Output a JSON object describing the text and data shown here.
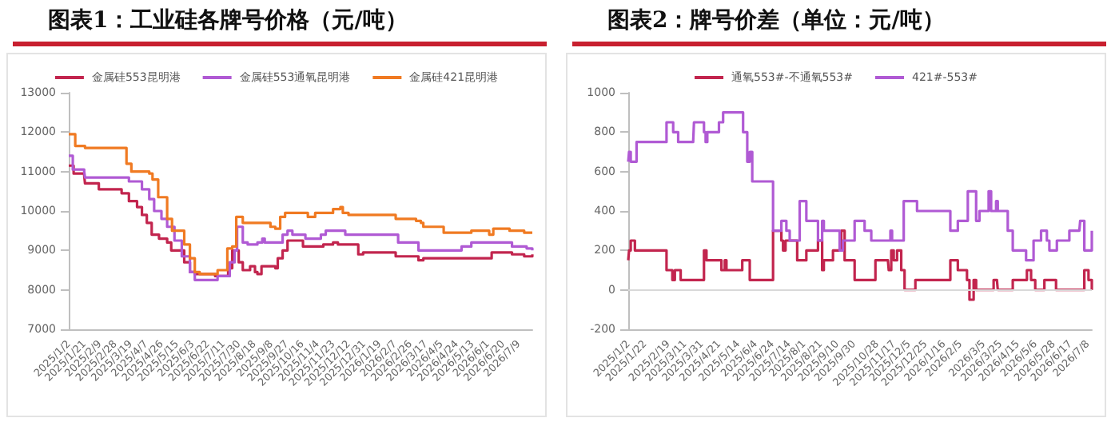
{
  "chart_data": [
    {
      "type": "step",
      "title": "图表1：工业硅各牌号价格（元/吨）",
      "legend": "top",
      "ylim": [
        7000,
        13000
      ],
      "yticks": [
        7000,
        8000,
        9000,
        10000,
        11000,
        12000,
        13000
      ],
      "xlim": [
        "2025-01-02",
        "2026-07-26"
      ],
      "xticks": [
        {
          "value": "2025-01-02",
          "label": "2025/1/2"
        },
        {
          "value": "2025-01-21",
          "label": "2025/1/21"
        },
        {
          "value": "2025-02-09",
          "label": "2025/2/9"
        },
        {
          "value": "2025-02-28",
          "label": "2025/2/28"
        },
        {
          "value": "2025-03-19",
          "label": "2025/3/19"
        },
        {
          "value": "2025-04-07",
          "label": "2025/4/7"
        },
        {
          "value": "2025-04-26",
          "label": "2025/4/26"
        },
        {
          "value": "2025-05-15",
          "label": "2025/5/15"
        },
        {
          "value": "2025-06-03",
          "label": "2025/6/3"
        },
        {
          "value": "2025-06-22",
          "label": "2025/6/22"
        },
        {
          "value": "2025-07-11",
          "label": "2025/7/11"
        },
        {
          "value": "2025-07-30",
          "label": "2025/7/30"
        },
        {
          "value": "2025-08-18",
          "label": "2025/8/18"
        },
        {
          "value": "2025-09-08",
          "label": "2025/9/8"
        },
        {
          "value": "2025-09-27",
          "label": "2025/9/27"
        },
        {
          "value": "2025-10-16",
          "label": "2025/10/16"
        },
        {
          "value": "2025-11-04",
          "label": "2025/11/4"
        },
        {
          "value": "2025-11-23",
          "label": "2025/11/23"
        },
        {
          "value": "2025-12-12",
          "label": "2025/12/12"
        },
        {
          "value": "2025-12-31",
          "label": "2025/12/31"
        },
        {
          "value": "2026-01-19",
          "label": "2026/1/19"
        },
        {
          "value": "2026-02-07",
          "label": "2026/2/7"
        },
        {
          "value": "2026-02-26",
          "label": "2026/2/26"
        },
        {
          "value": "2026-03-17",
          "label": "2026/3/17"
        },
        {
          "value": "2026-04-05",
          "label": "2026/4/5"
        },
        {
          "value": "2026-04-24",
          "label": "2026/4/24"
        },
        {
          "value": "2026-05-13",
          "label": "2026/5/13"
        },
        {
          "value": "2026-06-01",
          "label": "2026/6/1"
        },
        {
          "value": "2026-06-20",
          "label": "2026/6/20"
        },
        {
          "value": "2026-07-09",
          "label": "2026/7/9"
        }
      ],
      "series": [
        {
          "name": "金属硅553昆明港",
          "color": "#c2254e",
          "x": [
            "2025-01-02",
            "2025-01-08",
            "2025-01-21",
            "2025-01-22",
            "2025-02-05",
            "2025-02-08",
            "2025-03-05",
            "2025-03-08",
            "2025-03-17",
            "2025-03-27",
            "2025-04-02",
            "2025-04-08",
            "2025-04-14",
            "2025-04-23",
            "2025-05-03",
            "2025-05-08",
            "2025-05-20",
            "2025-05-24",
            "2025-05-31",
            "2025-06-06",
            "2025-07-01",
            "2025-07-13",
            "2025-07-17",
            "2025-07-22",
            "2025-07-27",
            "2025-07-30",
            "2025-08-04",
            "2025-08-13",
            "2025-08-19",
            "2025-08-22",
            "2025-08-27",
            "2025-09-13",
            "2025-09-16",
            "2025-09-22",
            "2025-09-28",
            "2025-10-11",
            "2025-10-17",
            "2025-11-11",
            "2025-11-23",
            "2025-11-29",
            "2025-12-18",
            "2025-12-24",
            "2025-12-30",
            "2026-02-05",
            "2026-02-08",
            "2026-03-05",
            "2026-03-08",
            "2026-03-14",
            "2026-06-03",
            "2026-06-06",
            "2026-06-28",
            "2026-07-01",
            "2026-07-16",
            "2026-07-26"
          ],
          "values": [
            11150,
            10950,
            10900,
            10700,
            10700,
            10550,
            10550,
            10450,
            10250,
            10100,
            9900,
            9700,
            9400,
            9300,
            9200,
            9000,
            9000,
            8700,
            8450,
            8400,
            8350,
            8350,
            8550,
            9000,
            9000,
            8700,
            8500,
            8600,
            8450,
            8400,
            8600,
            8550,
            8800,
            9000,
            9250,
            9250,
            9100,
            9150,
            9200,
            9150,
            9150,
            8900,
            8950,
            8950,
            8850,
            8850,
            8750,
            8800,
            8800,
            8950,
            8950,
            8900,
            8850,
            8900
          ]
        },
        {
          "name": "金属硅553通氧昆明港",
          "color": "#b05ad4",
          "x": [
            "2025-01-02",
            "2025-01-07",
            "2025-01-21",
            "2025-01-22",
            "2025-03-11",
            "2025-03-17",
            "2025-04-02",
            "2025-04-11",
            "2025-04-17",
            "2025-04-26",
            "2025-05-03",
            "2025-05-12",
            "2025-05-21",
            "2025-05-31",
            "2025-06-06",
            "2025-06-28",
            "2025-07-04",
            "2025-07-13",
            "2025-07-19",
            "2025-07-25",
            "2025-07-28",
            "2025-08-04",
            "2025-08-10",
            "2025-08-22",
            "2025-08-28",
            "2025-08-31",
            "2025-09-16",
            "2025-09-22",
            "2025-09-28",
            "2025-10-04",
            "2025-10-17",
            "2025-10-20",
            "2025-11-01",
            "2025-11-08",
            "2025-11-14",
            "2025-12-05",
            "2025-12-08",
            "2026-02-08",
            "2026-02-11",
            "2026-03-05",
            "2026-03-08",
            "2026-04-24",
            "2026-04-30",
            "2026-05-12",
            "2026-06-28",
            "2026-07-01",
            "2026-07-19",
            "2026-07-26"
          ],
          "values": [
            11400,
            11050,
            11000,
            10850,
            10850,
            10750,
            10550,
            10300,
            10000,
            9800,
            9600,
            9250,
            8850,
            8450,
            8250,
            8250,
            8350,
            8350,
            8700,
            9000,
            9600,
            9200,
            9150,
            9200,
            9300,
            9200,
            9200,
            9400,
            9500,
            9400,
            9400,
            9300,
            9300,
            9400,
            9500,
            9500,
            9400,
            9400,
            9200,
            9200,
            9000,
            9000,
            9100,
            9200,
            9200,
            9100,
            9050,
            9000
          ]
        },
        {
          "name": "金属硅421昆明港",
          "color": "#f07a22",
          "x": [
            "2025-01-02",
            "2025-01-07",
            "2025-01-10",
            "2025-01-22",
            "2025-03-11",
            "2025-03-14",
            "2025-03-20",
            "2025-04-11",
            "2025-04-15",
            "2025-04-22",
            "2025-04-30",
            "2025-05-03",
            "2025-05-09",
            "2025-05-20",
            "2025-05-24",
            "2025-05-31",
            "2025-06-06",
            "2025-06-12",
            "2025-07-01",
            "2025-07-04",
            "2025-07-11",
            "2025-07-16",
            "2025-07-22",
            "2025-07-27",
            "2025-07-31",
            "2025-08-04",
            "2025-08-22",
            "2025-09-07",
            "2025-09-13",
            "2025-09-19",
            "2025-09-25",
            "2025-10-20",
            "2025-10-23",
            "2025-11-01",
            "2025-11-20",
            "2025-11-23",
            "2025-12-02",
            "2025-12-05",
            "2025-12-12",
            "2026-02-05",
            "2026-02-08",
            "2026-03-05",
            "2026-03-11",
            "2026-03-14",
            "2026-04-05",
            "2026-04-08",
            "2026-05-09",
            "2026-05-12",
            "2026-05-31",
            "2026-06-03",
            "2026-06-08",
            "2026-06-25",
            "2026-06-28",
            "2026-07-16",
            "2026-07-26"
          ],
          "values": [
            11950,
            11950,
            11650,
            11600,
            11600,
            11200,
            11000,
            10950,
            10800,
            10350,
            10350,
            9800,
            9500,
            9500,
            9150,
            8800,
            8450,
            8400,
            8400,
            8500,
            8500,
            9050,
            9100,
            9850,
            9850,
            9700,
            9700,
            9600,
            9550,
            9850,
            9950,
            9950,
            9850,
            9950,
            9950,
            10050,
            10100,
            9950,
            9900,
            9900,
            9800,
            9750,
            9700,
            9600,
            9600,
            9450,
            9450,
            9500,
            9500,
            9400,
            9550,
            9550,
            9500,
            9450,
            9450
          ]
        }
      ]
    },
    {
      "type": "step",
      "title": "图表2：牌号价差（单位：元/吨）",
      "legend": "top",
      "ylim": [
        -200,
        1000
      ],
      "yticks": [
        -200,
        0,
        200,
        400,
        600,
        800,
        1000
      ],
      "xlim": [
        "2025-01-02",
        "2026-07-13"
      ],
      "ref_lines": [
        {
          "axis": "y",
          "value": 0,
          "color": "#d9d9d9"
        }
      ],
      "xticks": [
        {
          "value": "2025-01-02",
          "label": "2025/1/2"
        },
        {
          "value": "2025-01-22",
          "label": "2025/1/22"
        },
        {
          "value": "2025-02-19",
          "label": "2025/2/19"
        },
        {
          "value": "2025-03-11",
          "label": "2025/3/11"
        },
        {
          "value": "2025-03-31",
          "label": "2025/3/31"
        },
        {
          "value": "2025-04-21",
          "label": "2025/4/21"
        },
        {
          "value": "2025-05-14",
          "label": "2025/5/14"
        },
        {
          "value": "2025-06-04",
          "label": "2025/6/4"
        },
        {
          "value": "2025-06-24",
          "label": "2025/6/24"
        },
        {
          "value": "2025-07-14",
          "label": "2025/7/14"
        },
        {
          "value": "2025-08-01",
          "label": "2025/8/1"
        },
        {
          "value": "2025-08-21",
          "label": "2025/8/21"
        },
        {
          "value": "2025-09-10",
          "label": "2025/9/10"
        },
        {
          "value": "2025-09-30",
          "label": "2025/9/30"
        },
        {
          "value": "2025-10-28",
          "label": "2025/10/28"
        },
        {
          "value": "2025-11-17",
          "label": "2025/11/17"
        },
        {
          "value": "2025-12-05",
          "label": "2025/12/5"
        },
        {
          "value": "2025-12-25",
          "label": "2025/12/25"
        },
        {
          "value": "2026-01-16",
          "label": "2026/1/16"
        },
        {
          "value": "2026-02-05",
          "label": "2026/2/5"
        },
        {
          "value": "2026-03-05",
          "label": "2026/3/5"
        },
        {
          "value": "2026-03-25",
          "label": "2026/3/25"
        },
        {
          "value": "2026-04-15",
          "label": "2026/4/15"
        },
        {
          "value": "2026-05-06",
          "label": "2026/5/6"
        },
        {
          "value": "2026-05-28",
          "label": "2026/5/28"
        },
        {
          "value": "2026-06-17",
          "label": "2026/6/17"
        },
        {
          "value": "2026-07-08",
          "label": "2026/7/8"
        }
      ],
      "series": [
        {
          "name": "通氧553#-不通氧553#",
          "color": "#c2254e",
          "x": [
            "2025-01-02",
            "2025-01-03",
            "2025-01-05",
            "2025-01-10",
            "2025-02-12",
            "2025-02-17",
            "2025-02-24",
            "2025-02-27",
            "2025-03-06",
            "2025-04-01",
            "2025-04-03",
            "2025-04-06",
            "2025-04-21",
            "2025-04-24",
            "2025-04-28",
            "2025-04-30",
            "2025-05-16",
            "2025-05-19",
            "2025-05-25",
            "2025-05-28",
            "2025-06-19",
            "2025-06-25",
            "2025-07-05",
            "2025-07-07",
            "2025-07-10",
            "2025-07-22",
            "2025-07-24",
            "2025-08-01",
            "2025-08-04",
            "2025-08-16",
            "2025-08-18",
            "2025-08-23",
            "2025-08-25",
            "2025-09-02",
            "2025-09-05",
            "2025-09-11",
            "2025-09-15",
            "2025-09-19",
            "2025-09-28",
            "2025-10-01",
            "2025-10-21",
            "2025-10-26",
            "2025-11-10",
            "2025-11-11",
            "2025-11-14",
            "2025-11-17",
            "2025-11-21",
            "2025-11-26",
            "2025-11-30",
            "2025-12-10",
            "2025-12-13",
            "2026-01-21",
            "2026-01-24",
            "2026-01-30",
            "2026-02-02",
            "2026-02-13",
            "2026-02-16",
            "2026-02-21",
            "2026-02-24",
            "2026-03-14",
            "2026-03-17",
            "2026-03-21",
            "2026-03-22",
            "2026-04-06",
            "2026-04-09",
            "2026-04-24",
            "2026-04-26",
            "2026-05-01",
            "2026-05-06",
            "2026-05-13",
            "2026-05-17",
            "2026-05-29",
            "2026-05-31",
            "2026-06-29",
            "2026-07-04",
            "2026-07-09",
            "2026-07-13"
          ],
          "values": [
            150,
            200,
            250,
            200,
            200,
            100,
            50,
            100,
            50,
            50,
            200,
            150,
            150,
            100,
            150,
            100,
            100,
            150,
            150,
            50,
            50,
            300,
            250,
            200,
            250,
            250,
            150,
            150,
            200,
            200,
            250,
            100,
            150,
            150,
            200,
            200,
            300,
            150,
            150,
            50,
            50,
            150,
            150,
            100,
            200,
            150,
            200,
            100,
            0,
            0,
            50,
            50,
            150,
            150,
            100,
            50,
            -50,
            50,
            0,
            0,
            50,
            50,
            0,
            0,
            50,
            50,
            100,
            50,
            0,
            0,
            50,
            50,
            0,
            0,
            100,
            50,
            0
          ]
        },
        {
          "name": "421#-553#",
          "color": "#b05ad4",
          "x": [
            "2025-01-02",
            "2025-01-03",
            "2025-01-05",
            "2025-01-10",
            "2025-01-12",
            "2025-02-12",
            "2025-02-17",
            "2025-02-22",
            "2025-02-25",
            "2025-02-28",
            "2025-03-03",
            "2025-03-21",
            "2025-03-22",
            "2025-03-30",
            "2025-04-03",
            "2025-04-05",
            "2025-04-07",
            "2025-04-19",
            "2025-04-21",
            "2025-04-26",
            "2025-05-16",
            "2025-05-20",
            "2025-05-25",
            "2025-05-28",
            "2025-05-31",
            "2025-06-21",
            "2025-06-25",
            "2025-07-02",
            "2025-07-05",
            "2025-07-11",
            "2025-07-15",
            "2025-07-24",
            "2025-07-27",
            "2025-08-01",
            "2025-08-04",
            "2025-08-16",
            "2025-08-18",
            "2025-08-23",
            "2025-08-25",
            "2025-09-09",
            "2025-09-13",
            "2025-09-17",
            "2025-09-28",
            "2025-10-01",
            "2025-10-09",
            "2025-10-13",
            "2025-10-17",
            "2025-10-21",
            "2025-11-13",
            "2025-11-15",
            "2025-11-26",
            "2025-11-29",
            "2025-12-10",
            "2025-12-15",
            "2026-01-21",
            "2026-01-24",
            "2026-01-30",
            "2026-02-02",
            "2026-02-09",
            "2026-02-14",
            "2026-02-20",
            "2026-02-24",
            "2026-02-28",
            "2026-03-11",
            "2026-03-14",
            "2026-03-20",
            "2026-03-22",
            "2026-03-31",
            "2026-04-03",
            "2026-04-09",
            "2026-04-22",
            "2026-04-25",
            "2026-05-01",
            "2026-05-04",
            "2026-05-10",
            "2026-05-13",
            "2026-05-17",
            "2026-05-20",
            "2026-05-23",
            "2026-05-29",
            "2026-06-01",
            "2026-06-13",
            "2026-06-16",
            "2026-06-28",
            "2026-06-29",
            "2026-07-04",
            "2026-07-08",
            "2026-07-13"
          ],
          "values": [
            650,
            700,
            650,
            650,
            750,
            750,
            850,
            850,
            800,
            800,
            750,
            750,
            850,
            850,
            800,
            750,
            800,
            800,
            850,
            900,
            900,
            800,
            650,
            700,
            550,
            550,
            300,
            300,
            350,
            300,
            250,
            250,
            450,
            450,
            350,
            350,
            250,
            350,
            300,
            300,
            200,
            250,
            250,
            350,
            350,
            300,
            300,
            250,
            300,
            250,
            250,
            450,
            450,
            400,
            400,
            300,
            300,
            350,
            350,
            500,
            500,
            350,
            400,
            500,
            400,
            450,
            400,
            400,
            300,
            200,
            200,
            150,
            150,
            250,
            250,
            300,
            300,
            250,
            200,
            200,
            250,
            250,
            300,
            300,
            350,
            200,
            200,
            300
          ]
        }
      ]
    }
  ]
}
